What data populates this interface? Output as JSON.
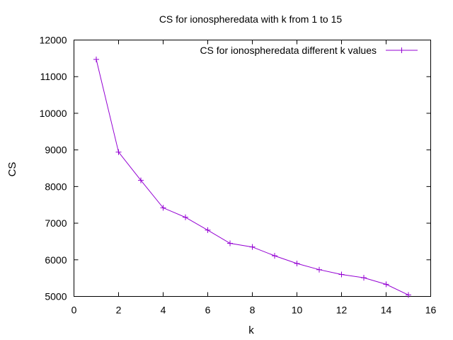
{
  "chart_data": {
    "type": "line",
    "title": "CS for ionospheredata with k from 1 to 15",
    "xlabel": "k",
    "ylabel": "CS",
    "xlim": [
      0,
      16
    ],
    "ylim": [
      5000,
      12000
    ],
    "x_ticks": [
      0,
      2,
      4,
      6,
      8,
      10,
      12,
      14,
      16
    ],
    "y_ticks": [
      5000,
      6000,
      7000,
      8000,
      9000,
      10000,
      11000,
      12000
    ],
    "grid": false,
    "legend_position": "top-right",
    "series": [
      {
        "name": "CS for ionospheredata different k values",
        "color": "#9400d3",
        "marker": "plus",
        "x": [
          1,
          2,
          3,
          4,
          5,
          6,
          7,
          8,
          9,
          10,
          11,
          12,
          13,
          14,
          15
        ],
        "y": [
          11470,
          8940,
          8170,
          7420,
          7160,
          6810,
          6450,
          6350,
          6110,
          5900,
          5730,
          5600,
          5510,
          5330,
          5040
        ]
      }
    ]
  }
}
